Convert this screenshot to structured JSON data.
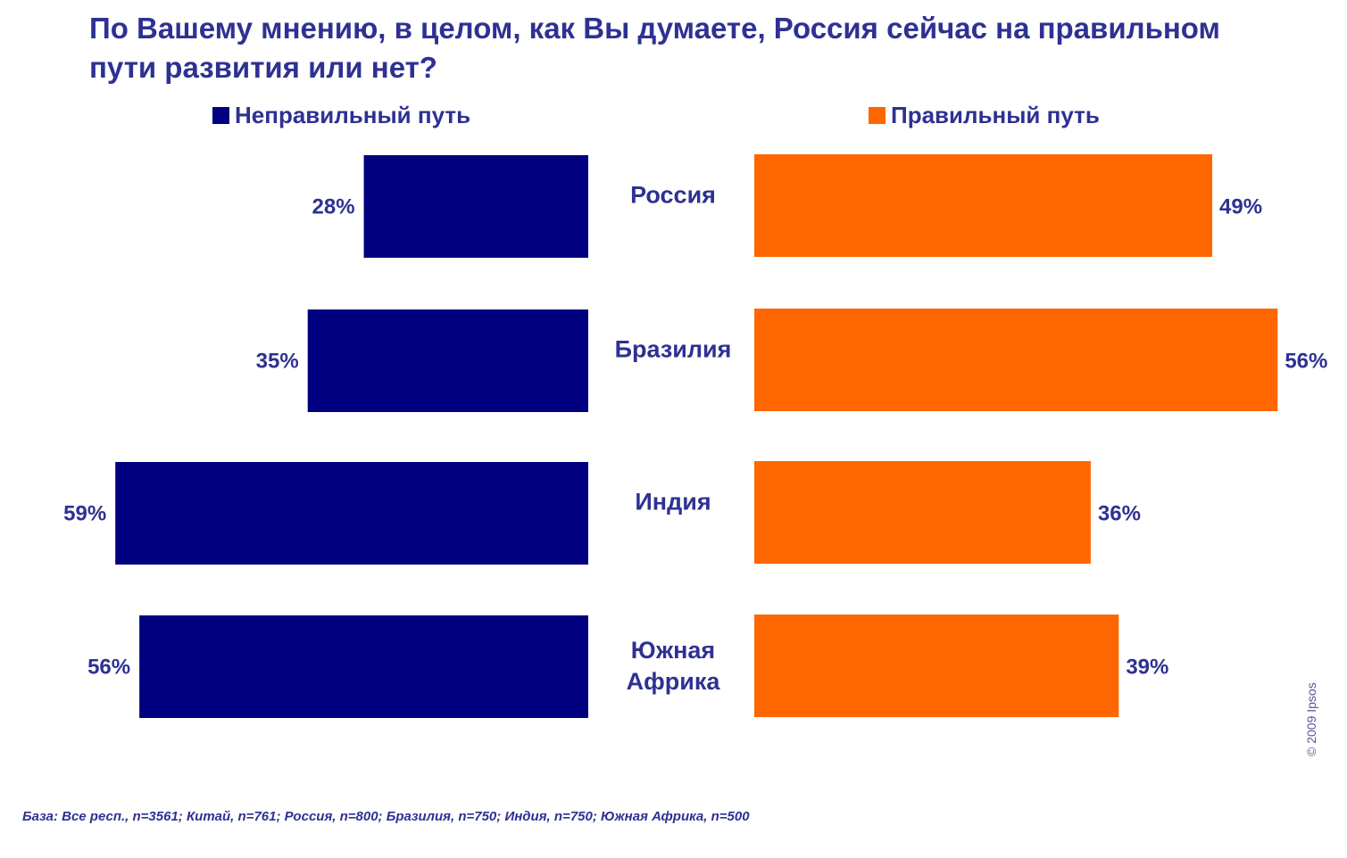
{
  "chart_data": {
    "type": "bar",
    "orientation": "horizontal-diverging",
    "title": "По Вашему мнению, в целом, как Вы думаете, Россия сейчас на правильном пути развития или нет?",
    "categories": [
      [
        "Россия"
      ],
      [
        "Бразилия"
      ],
      [
        "Индия"
      ],
      [
        "Южная",
        "Африка"
      ]
    ],
    "series": [
      {
        "name": "Неправильный путь",
        "color": "#000080",
        "values": [
          28,
          35,
          59,
          56
        ],
        "labels": [
          "28%",
          "35%",
          "59%",
          "56%"
        ],
        "side": "left"
      },
      {
        "name": "Правильный путь",
        "color": "#ff6600",
        "values": [
          49,
          56,
          36,
          39
        ],
        "labels": [
          "49%",
          "56%",
          "36%",
          "39%"
        ],
        "side": "right"
      }
    ],
    "unit": "%",
    "legend": "top",
    "grid": false
  },
  "footnote": "База: Все респ., n=3561; Китай, n=761; Россия, n=800; Бразилия, n=750; Индия, n=750; Южная Африка, n=500",
  "copyright": "© 2009 Ipsos",
  "colors": {
    "text": "#2e3192",
    "wrong": "#000080",
    "right": "#ff6600"
  }
}
